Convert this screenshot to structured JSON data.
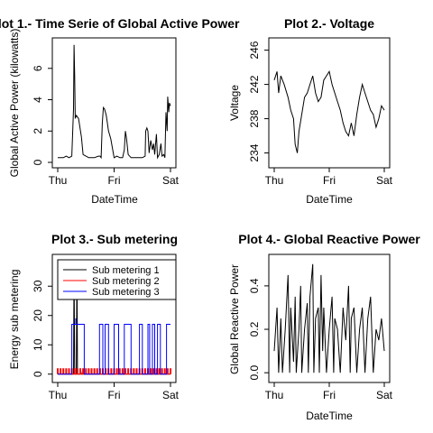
{
  "chart_data": [
    {
      "type": "line",
      "title": "Plot 1.- Time Serie of Global Active Power",
      "xlabel": "DateTime",
      "ylabel": "Global Active Power (kilowatts)",
      "x_ticks": [
        "Thu",
        "Fri",
        "Sat"
      ],
      "y_ticks": [
        "0",
        "2",
        "4",
        "6"
      ],
      "xlim": [
        0,
        2
      ],
      "ylim": [
        0,
        7.6
      ],
      "series": [
        {
          "color": "#000000",
          "segments": [
            [
              [
                0.0,
                0.3
              ],
              [
                0.1,
                0.3
              ],
              [
                0.15,
                0.4
              ],
              [
                0.2,
                0.3
              ],
              [
                0.25,
                0.4
              ],
              [
                0.28,
                3.4
              ],
              [
                0.29,
                7.5
              ],
              [
                0.3,
                5.5
              ],
              [
                0.31,
                2.8
              ],
              [
                0.33,
                3.0
              ],
              [
                0.37,
                2.8
              ],
              [
                0.42,
                1.6
              ],
              [
                0.45,
                0.5
              ],
              [
                0.55,
                0.3
              ],
              [
                0.65,
                0.3
              ],
              [
                0.72,
                0.4
              ],
              [
                0.75,
                0.4
              ],
              [
                0.77,
                0.3
              ],
              [
                0.79,
                2.5
              ],
              [
                0.81,
                3.5
              ],
              [
                0.83,
                3.4
              ],
              [
                0.86,
                3.0
              ],
              [
                0.9,
                2.0
              ],
              [
                0.94,
                1.5
              ],
              [
                1.0,
                0.3
              ],
              [
                1.05,
                0.4
              ],
              [
                1.1,
                0.3
              ],
              [
                1.15,
                0.3
              ],
              [
                1.18,
                0.8
              ],
              [
                1.2,
                2.0
              ],
              [
                1.22,
                1.5
              ],
              [
                1.25,
                0.5
              ],
              [
                1.3,
                0.3
              ],
              [
                1.4,
                0.3
              ],
              [
                1.5,
                0.3
              ],
              [
                1.55,
                0.4
              ],
              [
                1.56,
                2.0
              ],
              [
                1.58,
                2.2
              ],
              [
                1.6,
                2.0
              ],
              [
                1.62,
                0.6
              ],
              [
                1.65,
                1.4
              ],
              [
                1.68,
                0.8
              ],
              [
                1.7,
                1.2
              ],
              [
                1.72,
                0.5
              ],
              [
                1.75,
                1.8
              ],
              [
                1.77,
                0.3
              ],
              [
                1.8,
                0.5
              ],
              [
                1.83,
                1.2
              ],
              [
                1.85,
                0.4
              ],
              [
                1.88,
                0.5
              ],
              [
                1.9,
                0.3
              ],
              [
                1.92,
                3.2
              ],
              [
                1.94,
                2.0
              ],
              [
                1.95,
                4.2
              ],
              [
                1.97,
                3.2
              ],
              [
                1.98,
                3.8
              ],
              [
                2.0,
                3.6
              ]
            ]
          ]
        }
      ]
    },
    {
      "type": "line",
      "title": "Plot 2.- Voltage",
      "xlabel": "DateTime",
      "ylabel": "Voltage",
      "x_ticks": [
        "Thu",
        "Fri",
        "Sat"
      ],
      "y_ticks": [
        "234",
        "238",
        "242",
        "246"
      ],
      "xlim": [
        0,
        2
      ],
      "ylim": [
        232.9,
        246.8
      ],
      "series": [
        {
          "color": "#000000",
          "segments": [
            [
              [
                0.0,
                242.5
              ],
              [
                0.05,
                243.5
              ],
              [
                0.08,
                241.0
              ],
              [
                0.12,
                243.0
              ],
              [
                0.18,
                242.0
              ],
              [
                0.25,
                240.5
              ],
              [
                0.3,
                239.0
              ],
              [
                0.35,
                238.0
              ],
              [
                0.38,
                235.0
              ],
              [
                0.42,
                234.0
              ],
              [
                0.45,
                236.5
              ],
              [
                0.5,
                238.5
              ],
              [
                0.55,
                240.5
              ],
              [
                0.6,
                241.0
              ],
              [
                0.65,
                242.0
              ],
              [
                0.7,
                243.0
              ],
              [
                0.75,
                241.0
              ],
              [
                0.8,
                240.0
              ],
              [
                0.85,
                240.5
              ],
              [
                0.9,
                242.5
              ],
              [
                0.95,
                243.0
              ],
              [
                1.0,
                243.5
              ],
              [
                1.05,
                242.0
              ],
              [
                1.1,
                241.0
              ],
              [
                1.15,
                240.0
              ],
              [
                1.2,
                239.0
              ],
              [
                1.25,
                237.5
              ],
              [
                1.3,
                236.5
              ],
              [
                1.35,
                236.0
              ],
              [
                1.4,
                237.5
              ],
              [
                1.45,
                236.0
              ],
              [
                1.5,
                238.5
              ],
              [
                1.55,
                240.5
              ],
              [
                1.6,
                242.0
              ],
              [
                1.65,
                241.0
              ],
              [
                1.7,
                240.0
              ],
              [
                1.75,
                239.0
              ],
              [
                1.8,
                238.5
              ],
              [
                1.85,
                237.0
              ],
              [
                1.9,
                238.0
              ],
              [
                1.95,
                239.5
              ],
              [
                2.0,
                239.0
              ]
            ]
          ]
        }
      ]
    },
    {
      "type": "line",
      "title": "Plot 3.- Sub metering",
      "xlabel": "",
      "ylabel": "Energy sub metering",
      "x_ticks": [
        "Thu",
        "Fri",
        "Sat"
      ],
      "y_ticks": [
        "0",
        "10",
        "20",
        "30"
      ],
      "xlim": [
        0,
        2
      ],
      "ylim": [
        -1,
        39
      ],
      "legend": {
        "position": "top-right",
        "entries": [
          "Sub metering 1",
          "Sub metering 2",
          "Sub metering 3"
        ]
      },
      "series": [
        {
          "name": "Sub metering 1",
          "color": "#000000",
          "segments": [
            [
              [
                0,
                0
              ],
              [
                0.28,
                0
              ],
              [
                0.29,
                38
              ],
              [
                0.3,
                0
              ],
              [
                0.33,
                0
              ],
              [
                0.34,
                37
              ],
              [
                0.35,
                0
              ],
              [
                0.4,
                0
              ],
              [
                0.41,
                1
              ],
              [
                0.42,
                0
              ],
              [
                2,
                0
              ]
            ]
          ]
        },
        {
          "name": "Sub metering 2",
          "color": "#ff0000",
          "segments": [
            [
              [
                0,
                0
              ],
              [
                2,
                0
              ]
            ]
          ]
        },
        {
          "name": "Sub metering 3",
          "color": "#0000ff",
          "segments": [
            [
              [
                0,
                0
              ],
              [
                0.25,
                0
              ],
              [
                0.25,
                17
              ],
              [
                0.32,
                17
              ],
              [
                0.32,
                19
              ],
              [
                0.33,
                17
              ],
              [
                0.47,
                17
              ],
              [
                0.47,
                0
              ],
              [
                0.74,
                0
              ],
              [
                0.74,
                17
              ],
              [
                0.8,
                17
              ],
              [
                0.8,
                0
              ],
              [
                0.84,
                0
              ],
              [
                0.84,
                17
              ],
              [
                0.9,
                17
              ],
              [
                0.9,
                0
              ],
              [
                1.0,
                0
              ],
              [
                1.0,
                17
              ],
              [
                1.08,
                17
              ],
              [
                1.08,
                0
              ],
              [
                1.18,
                0
              ],
              [
                1.18,
                17
              ],
              [
                1.3,
                17
              ],
              [
                1.3,
                0
              ],
              [
                1.45,
                0
              ],
              [
                1.45,
                17
              ],
              [
                1.5,
                17
              ],
              [
                1.5,
                0
              ],
              [
                1.6,
                0
              ],
              [
                1.6,
                17
              ],
              [
                1.63,
                17
              ],
              [
                1.63,
                0
              ],
              [
                1.68,
                0
              ],
              [
                1.68,
                17
              ],
              [
                1.72,
                17
              ],
              [
                1.72,
                0
              ],
              [
                1.77,
                0
              ],
              [
                1.77,
                17
              ],
              [
                1.82,
                17
              ],
              [
                1.82,
                0
              ],
              [
                1.93,
                0
              ],
              [
                1.93,
                17
              ],
              [
                2,
                17
              ]
            ]
          ]
        }
      ]
    },
    {
      "type": "line",
      "title": "Plot 4.- Global Reactive Power",
      "xlabel": "DateTime",
      "ylabel": "Global Reactive Power",
      "x_ticks": [
        "Thu",
        "Fri",
        "Sat"
      ],
      "y_ticks": [
        "0.0",
        "0.2",
        "0.4"
      ],
      "xlim": [
        0,
        2
      ],
      "ylim": [
        -0.02,
        0.52
      ],
      "series": [
        {
          "color": "#000000",
          "segments": [
            [
              [
                0.0,
                0.1
              ],
              [
                0.05,
                0.3
              ],
              [
                0.08,
                0
              ],
              [
                0.12,
                0.25
              ],
              [
                0.15,
                0
              ],
              [
                0.2,
                0.2
              ],
              [
                0.25,
                0.45
              ],
              [
                0.28,
                0
              ],
              [
                0.3,
                0.3
              ],
              [
                0.35,
                0.05
              ],
              [
                0.38,
                0.35
              ],
              [
                0.4,
                0
              ],
              [
                0.45,
                0.2
              ],
              [
                0.48,
                0.4
              ],
              [
                0.5,
                0
              ],
              [
                0.55,
                0.2
              ],
              [
                0.6,
                0.32
              ],
              [
                0.62,
                0
              ],
              [
                0.65,
                0.35
              ],
              [
                0.7,
                0.5
              ],
              [
                0.72,
                0
              ],
              [
                0.75,
                0.25
              ],
              [
                0.8,
                0.3
              ],
              [
                0.82,
                0
              ],
              [
                0.85,
                0.45
              ],
              [
                0.88,
                0.1
              ],
              [
                0.9,
                0.3
              ],
              [
                0.95,
                0
              ],
              [
                1.0,
                0.2
              ],
              [
                1.05,
                0.35
              ],
              [
                1.08,
                0
              ],
              [
                1.1,
                0.25
              ],
              [
                1.15,
                0.2
              ],
              [
                1.2,
                0
              ],
              [
                1.25,
                0.3
              ],
              [
                1.3,
                0.15
              ],
              [
                1.35,
                0.4
              ],
              [
                1.38,
                0
              ],
              [
                1.4,
                0.25
              ],
              [
                1.45,
                0.3
              ],
              [
                1.5,
                0
              ],
              [
                1.55,
                0.2
              ],
              [
                1.6,
                0.3
              ],
              [
                1.65,
                0
              ],
              [
                1.7,
                0.25
              ],
              [
                1.75,
                0.35
              ],
              [
                1.8,
                0
              ],
              [
                1.85,
                0.2
              ],
              [
                1.9,
                0.15
              ],
              [
                1.95,
                0.25
              ],
              [
                2.0,
                0.1
              ]
            ]
          ]
        }
      ]
    }
  ]
}
